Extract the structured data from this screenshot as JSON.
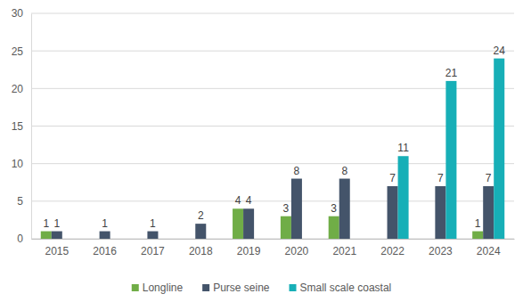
{
  "chart_data": {
    "type": "bar",
    "categories": [
      "2015",
      "2016",
      "2017",
      "2018",
      "2019",
      "2020",
      "2021",
      "2022",
      "2023",
      "2024"
    ],
    "series": [
      {
        "name": "Longline",
        "color": "#70ad47",
        "values": [
          1,
          null,
          null,
          null,
          4,
          3,
          3,
          null,
          null,
          1
        ]
      },
      {
        "name": "Purse seine",
        "color": "#44546a",
        "values": [
          1,
          1,
          1,
          2,
          4,
          8,
          8,
          7,
          7,
          7
        ]
      },
      {
        "name": "Small scale coastal",
        "color": "#17afb7",
        "values": [
          null,
          null,
          null,
          null,
          null,
          null,
          null,
          11,
          21,
          24
        ]
      }
    ],
    "ylim": [
      0,
      30
    ],
    "yticks": [
      0,
      5,
      10,
      15,
      20,
      25,
      30
    ],
    "grid": true,
    "data_labels": true,
    "legend": "bottom"
  }
}
